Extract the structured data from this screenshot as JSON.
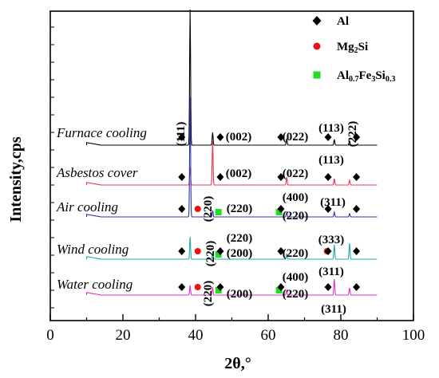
{
  "chart_data": {
    "type": "line",
    "xlabel": "2θ,°",
    "ylabel": "Intensity,cps",
    "xlim": [
      0,
      100
    ],
    "xticks": [
      "0",
      "20",
      "40",
      "60",
      "80",
      "100"
    ],
    "grid": false,
    "legend": {
      "placement": "top-right",
      "entries": [
        {
          "name_main": "Al",
          "name_sub": "",
          "name_tail": "",
          "name_sub2": "",
          "marker": "diamond",
          "color": "#000000"
        },
        {
          "name_main": "Mg",
          "name_sub": "2",
          "name_tail": "Si",
          "name_sub2": "",
          "marker": "circle",
          "color": "#ee1111"
        },
        {
          "name_main": "Al",
          "name_sub": "0.7",
          "name_tail": "Fe",
          "name_sub2": "3",
          "name_tail2": "Si",
          "name_sub3": "0.3",
          "marker": "square",
          "color": "#22dd22"
        }
      ]
    },
    "series": [
      {
        "name": "Furnace cooling",
        "color": "#000000",
        "baseline": 0,
        "peaks": [
          {
            "x": 38.5,
            "h": 170
          },
          {
            "x": 44.7,
            "h": 16
          },
          {
            "x": 65.1,
            "h": 8
          },
          {
            "x": 78.2,
            "h": 7
          },
          {
            "x": 82.4,
            "h": 5
          }
        ]
      },
      {
        "name": "Asbestos cover",
        "color": "#e8384f",
        "baseline": 0,
        "peaks": [
          {
            "x": 38.5,
            "h": 22
          },
          {
            "x": 44.7,
            "h": 55
          },
          {
            "x": 65.1,
            "h": 10
          },
          {
            "x": 78.2,
            "h": 8
          },
          {
            "x": 82.4,
            "h": 6
          }
        ]
      },
      {
        "name": "Air cooling",
        "color": "#3333aa",
        "baseline": 0,
        "peaks": [
          {
            "x": 38.5,
            "h": 150
          },
          {
            "x": 44.7,
            "h": 8
          },
          {
            "x": 65.1,
            "h": 6
          },
          {
            "x": 78.2,
            "h": 6
          },
          {
            "x": 82.4,
            "h": 4
          }
        ]
      },
      {
        "name": "Wind cooling",
        "color": "#22aaaa",
        "baseline": 0,
        "peaks": [
          {
            "x": 38.5,
            "h": 28
          },
          {
            "x": 44.7,
            "h": 9
          },
          {
            "x": 65.1,
            "h": 7
          },
          {
            "x": 78.2,
            "h": 18
          },
          {
            "x": 82.4,
            "h": 20
          }
        ]
      },
      {
        "name": "Water cooling",
        "color": "#dd33cc",
        "baseline": 0,
        "peaks": [
          {
            "x": 38.5,
            "h": 12
          },
          {
            "x": 44.7,
            "h": 10
          },
          {
            "x": 65.1,
            "h": 6
          },
          {
            "x": 78.2,
            "h": 20
          },
          {
            "x": 82.4,
            "h": 9
          }
        ]
      }
    ],
    "annotations": [
      {
        "text": "(111)",
        "x": 38.5,
        "series": 0
      },
      {
        "text": "(002)",
        "x": 51.5,
        "series": 0
      },
      {
        "text": "(022)",
        "x": 68.5,
        "series": 0
      },
      {
        "text": "(113)",
        "x": 76.5,
        "series": 0
      },
      {
        "text": "(222)",
        "x": 82.4,
        "series": 0
      },
      {
        "text": "(002)",
        "x": 51.5,
        "series": 1
      },
      {
        "text": "(022)",
        "x": 68.5,
        "series": 1
      },
      {
        "text": "(113)",
        "x": 76.5,
        "series": 1
      },
      {
        "text": "(220)",
        "x": 42.5,
        "series": 2
      },
      {
        "text": "(220)",
        "x": 51.5,
        "series": 2
      },
      {
        "text": "(400)",
        "x": 68.5,
        "series": 2
      },
      {
        "text": "(311)",
        "x": 76.5,
        "series": 2
      },
      {
        "text": "(220)",
        "x": 68.5,
        "series": 2
      },
      {
        "text": "(220)",
        "x": 51.5,
        "series": 3
      },
      {
        "text": "(220)",
        "x": 42.5,
        "series": 3
      },
      {
        "text": "(200)",
        "x": 51.5,
        "series": 3
      },
      {
        "text": "(333)",
        "x": 77.0,
        "series": 3
      },
      {
        "text": "(220)",
        "x": 68.5,
        "series": 3
      },
      {
        "text": "(220)",
        "x": 44.8,
        "series": 4
      },
      {
        "text": "(200)",
        "x": 51.5,
        "series": 4
      },
      {
        "text": "(400)",
        "x": 68.5,
        "series": 4
      },
      {
        "text": "(311)",
        "x": 77.0,
        "series": 4
      },
      {
        "text": "(220)",
        "x": 68.5,
        "series": 4
      },
      {
        "text": "(311)",
        "x": 77.0,
        "series": 4
      }
    ],
    "markers": [
      {
        "type": "diamond",
        "x": 36.2,
        "series": 0
      },
      {
        "type": "diamond",
        "x": 46.8,
        "series": 0
      },
      {
        "type": "diamond",
        "x": 63.5,
        "series": 0
      },
      {
        "type": "diamond",
        "x": 76.5,
        "series": 0
      },
      {
        "type": "diamond",
        "x": 84.3,
        "series": 0
      },
      {
        "type": "diamond",
        "x": 36.2,
        "series": 1
      },
      {
        "type": "diamond",
        "x": 46.8,
        "series": 1
      },
      {
        "type": "diamond",
        "x": 63.5,
        "series": 1
      },
      {
        "type": "diamond",
        "x": 76.5,
        "series": 1
      },
      {
        "type": "diamond",
        "x": 84.3,
        "series": 1
      },
      {
        "type": "diamond",
        "x": 36.2,
        "series": 2
      },
      {
        "type": "circle",
        "x": 40.6,
        "series": 2
      },
      {
        "type": "square",
        "x": 46.3,
        "series": 2
      },
      {
        "type": "square",
        "x": 63.0,
        "series": 2
      },
      {
        "type": "diamond",
        "x": 63.5,
        "series": 2
      },
      {
        "type": "diamond",
        "x": 76.5,
        "series": 2
      },
      {
        "type": "diamond",
        "x": 84.3,
        "series": 2
      },
      {
        "type": "diamond",
        "x": 36.2,
        "series": 3
      },
      {
        "type": "circle",
        "x": 40.6,
        "series": 3
      },
      {
        "type": "square",
        "x": 46.3,
        "series": 3
      },
      {
        "type": "diamond",
        "x": 46.8,
        "series": 3
      },
      {
        "type": "diamond",
        "x": 63.5,
        "series": 3
      },
      {
        "type": "circle",
        "x": 76.2,
        "series": 3
      },
      {
        "type": "diamond",
        "x": 76.5,
        "series": 3
      },
      {
        "type": "diamond",
        "x": 84.3,
        "series": 3
      },
      {
        "type": "diamond",
        "x": 36.2,
        "series": 4
      },
      {
        "type": "circle",
        "x": 40.6,
        "series": 4
      },
      {
        "type": "square",
        "x": 46.3,
        "series": 4
      },
      {
        "type": "diamond",
        "x": 46.8,
        "series": 4
      },
      {
        "type": "square",
        "x": 63.0,
        "series": 4
      },
      {
        "type": "diamond",
        "x": 63.5,
        "series": 4
      },
      {
        "type": "diamond",
        "x": 76.5,
        "series": 4
      },
      {
        "type": "diamond",
        "x": 84.3,
        "series": 4
      }
    ]
  }
}
